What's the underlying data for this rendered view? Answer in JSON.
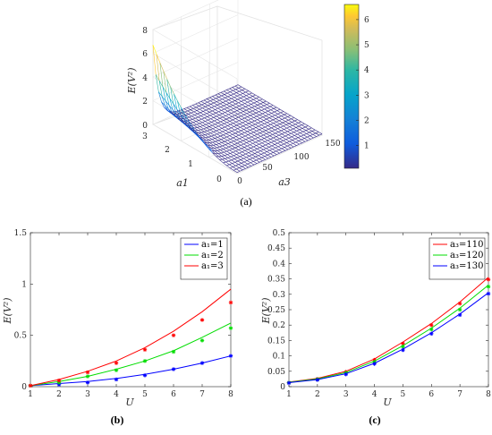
{
  "chart_data": [
    {
      "id": "a",
      "type": "surface",
      "caption": "(a)",
      "xlabel": "a3",
      "ylabel": "a1",
      "zlabel": "E(V²)",
      "x_ticks": [
        "0",
        "50",
        "100",
        "150"
      ],
      "y_ticks": [
        "0",
        "1",
        "2",
        "3"
      ],
      "z_ticks": [
        "0",
        "2",
        "4",
        "6",
        "8"
      ],
      "xlim": [
        0,
        150
      ],
      "ylim": [
        0,
        3
      ],
      "zlim": [
        0,
        8
      ],
      "colorbar": {
        "ticks": [
          "1",
          "2",
          "3",
          "4",
          "5",
          "6"
        ],
        "range": [
          0.1,
          6.6
        ]
      },
      "grid": true
    },
    {
      "id": "b",
      "type": "line",
      "caption": "(b)",
      "xlabel": "U",
      "ylabel": "E(V²)",
      "xlim": [
        1,
        8
      ],
      "ylim": [
        0,
        1.5
      ],
      "x_ticks": [
        "1",
        "2",
        "3",
        "4",
        "5",
        "6",
        "7",
        "8"
      ],
      "y_ticks": [
        "0",
        "0.5",
        "1",
        "1.5"
      ],
      "legend": "top-right",
      "x": [
        1,
        2,
        3,
        4,
        5,
        6,
        7,
        8
      ],
      "series": [
        {
          "name": "a₁=1",
          "color": "#0000ff",
          "line": [
            0.01,
            0.03,
            0.05,
            0.08,
            0.12,
            0.17,
            0.23,
            0.3
          ],
          "points": [
            0.01,
            0.02,
            0.04,
            0.07,
            0.11,
            0.17,
            0.23,
            0.3
          ]
        },
        {
          "name": "a₁=2",
          "color": "#00dd00",
          "line": [
            0.01,
            0.05,
            0.1,
            0.17,
            0.25,
            0.35,
            0.48,
            0.62
          ],
          "points": [
            0.01,
            0.04,
            0.1,
            0.16,
            0.25,
            0.34,
            0.45,
            0.57
          ]
        },
        {
          "name": "a₁=3",
          "color": "#ff0000",
          "line": [
            0.01,
            0.07,
            0.15,
            0.25,
            0.38,
            0.54,
            0.73,
            0.95
          ],
          "points": [
            0.01,
            0.06,
            0.14,
            0.23,
            0.36,
            0.5,
            0.65,
            0.82
          ]
        }
      ]
    },
    {
      "id": "c",
      "type": "line",
      "caption": "(c)",
      "xlabel": "U",
      "ylabel": "E(V²)",
      "xlim": [
        1,
        8
      ],
      "ylim": [
        0,
        0.5
      ],
      "x_ticks": [
        "1",
        "2",
        "3",
        "4",
        "5",
        "6",
        "7",
        "8"
      ],
      "y_ticks": [
        "0",
        "0.05",
        "0.1",
        "0.15",
        "0.2",
        "0.25",
        "0.3",
        "0.35",
        "0.4",
        "0.45",
        "0.5"
      ],
      "legend": "top-right",
      "x": [
        1,
        2,
        3,
        4,
        5,
        6,
        7,
        8
      ],
      "series": [
        {
          "name": "a₃=110",
          "color": "#ff0000",
          "line": [
            0.015,
            0.027,
            0.05,
            0.09,
            0.145,
            0.205,
            0.275,
            0.355
          ],
          "points": [
            0.013,
            0.025,
            0.048,
            0.087,
            0.14,
            0.2,
            0.27,
            0.348
          ]
        },
        {
          "name": "a₃=120",
          "color": "#00dd00",
          "line": [
            0.014,
            0.025,
            0.046,
            0.083,
            0.133,
            0.19,
            0.255,
            0.33
          ],
          "points": [
            0.013,
            0.024,
            0.045,
            0.08,
            0.13,
            0.186,
            0.25,
            0.325
          ]
        },
        {
          "name": "a₃=130",
          "color": "#0000ff",
          "line": [
            0.013,
            0.023,
            0.042,
            0.076,
            0.122,
            0.175,
            0.236,
            0.305
          ],
          "points": [
            0.012,
            0.022,
            0.04,
            0.074,
            0.119,
            0.172,
            0.233,
            0.302
          ]
        }
      ]
    }
  ]
}
